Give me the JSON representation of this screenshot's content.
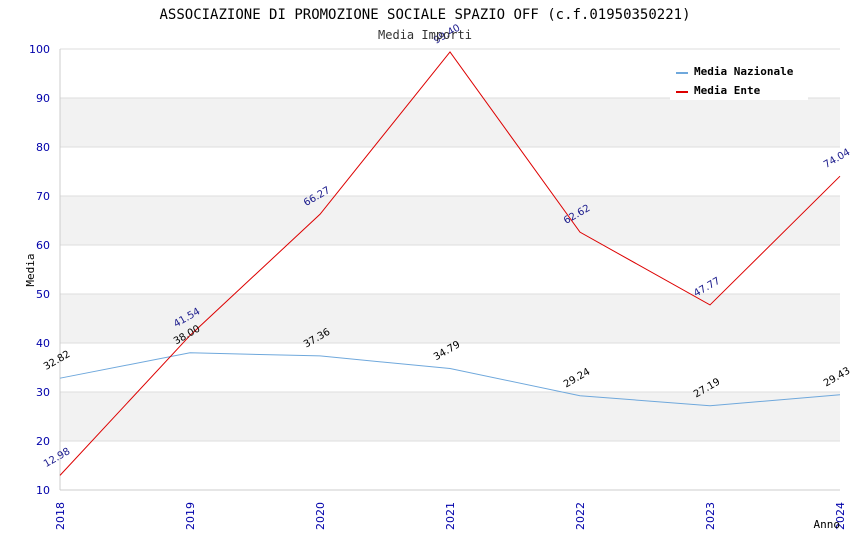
{
  "chart_data": {
    "type": "line",
    "title": "ASSOCIAZIONE DI PROMOZIONE SOCIALE SPAZIO OFF (c.f.01950350221)",
    "subtitle": "Media Importi",
    "xlabel": "Anno",
    "ylabel": "Media",
    "ylim": [
      10,
      100
    ],
    "yticks": [
      10,
      20,
      30,
      40,
      50,
      60,
      70,
      80,
      90,
      100
    ],
    "x": [
      "2018",
      "2019",
      "2020",
      "2021",
      "2022",
      "2023",
      "2024"
    ],
    "legend_position": "top-right",
    "series": [
      {
        "name": "Media Nazionale",
        "color": "#6fa8dc",
        "values": [
          32.82,
          38.0,
          37.36,
          34.79,
          29.24,
          27.19,
          29.43
        ],
        "labels": [
          "32.82",
          "38.00",
          "37.36",
          "34.79",
          "29.24",
          "27.19",
          "29.43"
        ]
      },
      {
        "name": "Media Ente",
        "color": "#dd0000",
        "values": [
          12.98,
          41.54,
          66.27,
          99.4,
          62.62,
          47.77,
          74.04
        ],
        "labels": [
          "12.98",
          "41.54",
          "66.27",
          "99.40",
          "62.62",
          "47.77",
          "74.04"
        ]
      }
    ]
  }
}
